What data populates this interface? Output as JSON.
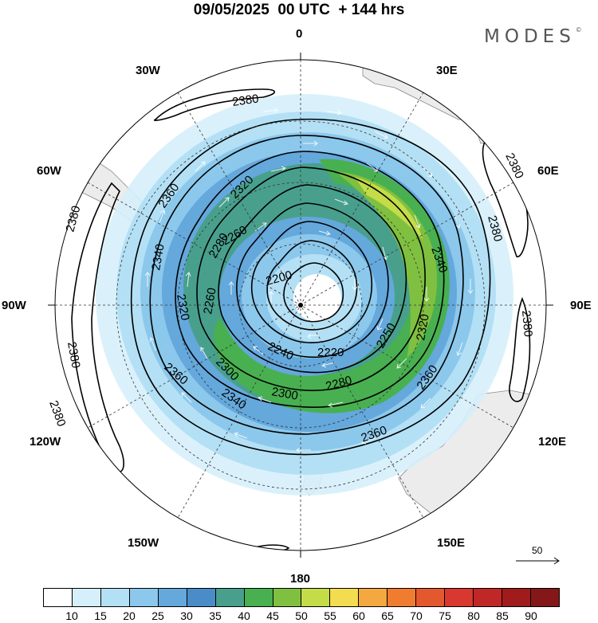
{
  "title": "09/05/2025  00 UTC  + 144 hrs",
  "logo": "MODES",
  "logo_mark": "©",
  "longitude_labels": {
    "top": "0",
    "bottom": "180",
    "left": "90W",
    "right": "90E",
    "w30": "30W",
    "e30": "30E",
    "w60": "60W",
    "e60": "60E",
    "w120": "120W",
    "e120": "120E",
    "w150": "150W",
    "e150": "150E"
  },
  "contour_labels": [
    "2380",
    "2380",
    "2380",
    "2380",
    "2380",
    "2380",
    "2380",
    "2360",
    "2360",
    "2360",
    "2360",
    "2340",
    "2340",
    "2340",
    "2320",
    "2320",
    "2320",
    "2300",
    "2300",
    "2280",
    "2280",
    "2260",
    "2260",
    "2250",
    "2240",
    "2220",
    "2200"
  ],
  "reference_vector": "50",
  "colorbar": {
    "labels": [
      "10",
      "15",
      "20",
      "25",
      "30",
      "35",
      "40",
      "45",
      "50",
      "55",
      "60",
      "65",
      "70",
      "75",
      "80",
      "85",
      "90"
    ],
    "colors": [
      "#ffffff",
      "#d6f0fb",
      "#b4e0f5",
      "#8cc8ec",
      "#64a8dc",
      "#4a8cc8",
      "#48a08c",
      "#48b050",
      "#80c040",
      "#c4dc48",
      "#f4dc50",
      "#f4a840",
      "#f07c30",
      "#e45830",
      "#d83830",
      "#c02828",
      "#a01c1c",
      "#841818"
    ]
  },
  "map_style": {
    "land": "#ececec",
    "coastline": "#888888",
    "contour_color": "#000000",
    "grid_color": "#333333"
  }
}
